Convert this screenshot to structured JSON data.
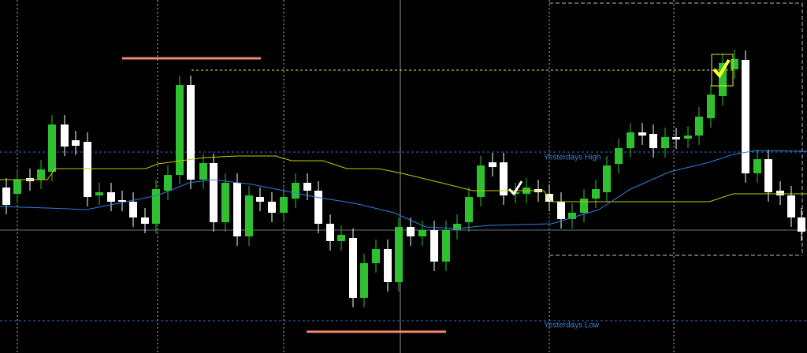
{
  "labels": {
    "high": "Yesterdays High",
    "low": "Yesterdays Low"
  }
}
